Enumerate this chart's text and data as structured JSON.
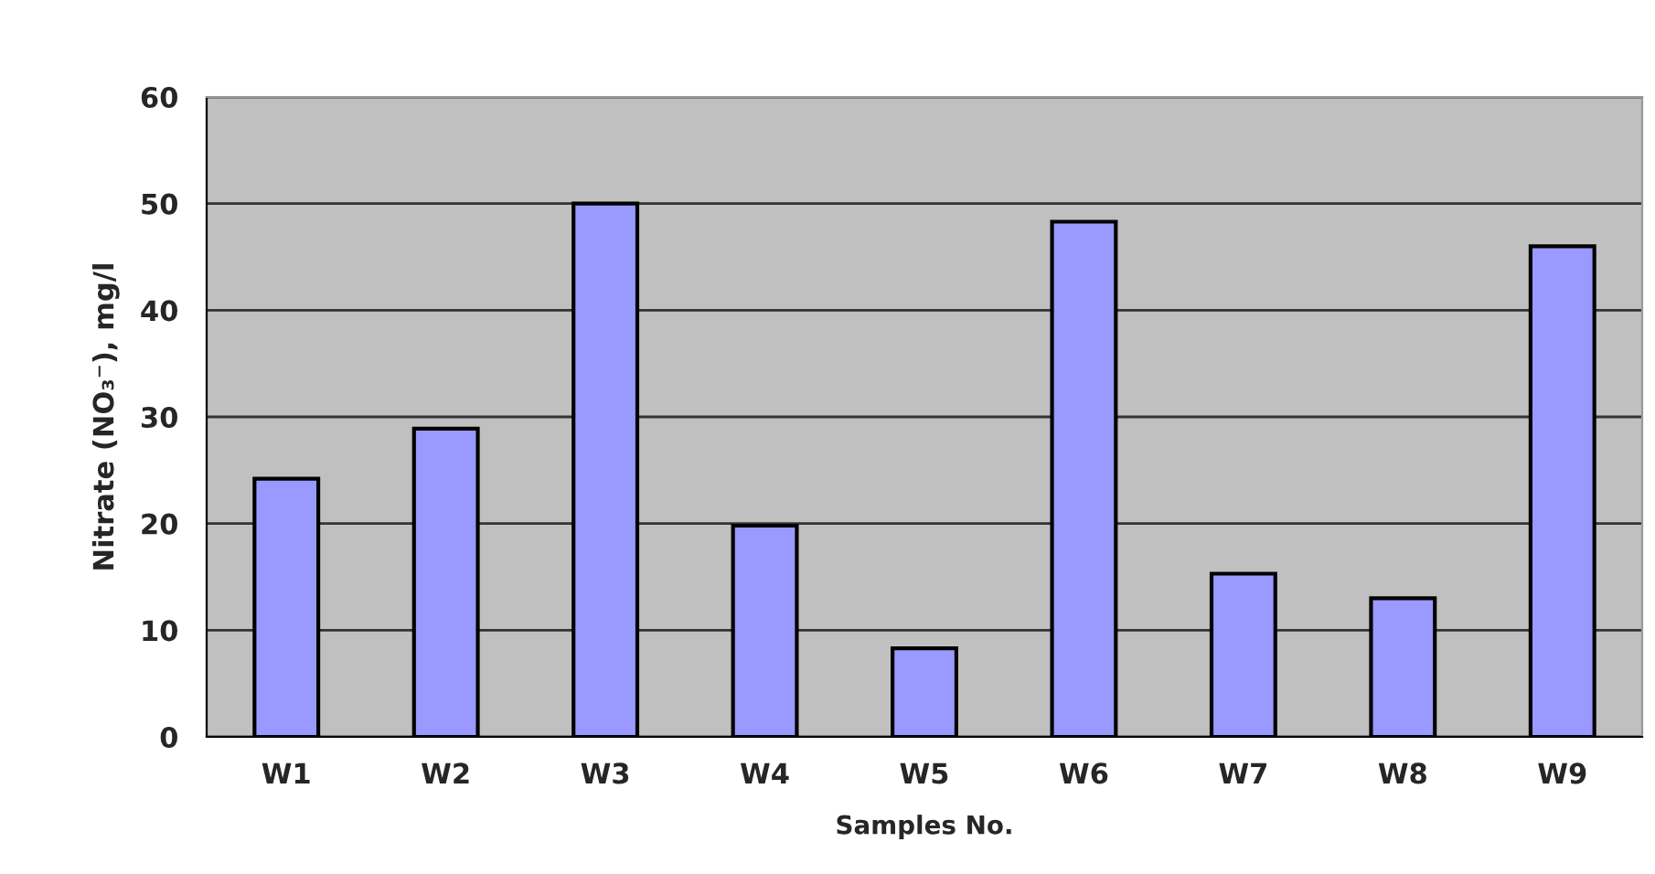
{
  "chart_data": {
    "type": "bar",
    "xlabel": "Samples No.",
    "ylabel": "Nitrate (NO₃⁻), mg/l",
    "categories": [
      "W1",
      "W2",
      "W3",
      "W4",
      "W5",
      "W6",
      "W7",
      "W8",
      "W9"
    ],
    "values": [
      24.2,
      28.9,
      50.0,
      19.8,
      8.3,
      48.3,
      15.3,
      13.0,
      46.0
    ],
    "color": "#9999ff",
    "ylim": [
      0,
      60
    ],
    "yticks": [
      0,
      10,
      20,
      30,
      40,
      50,
      60
    ],
    "grid": "y",
    "legend": false
  }
}
